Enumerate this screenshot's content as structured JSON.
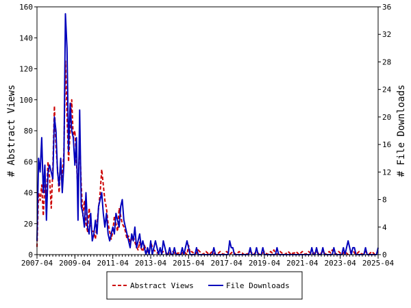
{
  "chart_data": {
    "type": "line",
    "title": "",
    "xlabel": "",
    "ylabel_left": "# Abstract Views",
    "ylabel_right": "# File Downloads",
    "x_start": "2007-04",
    "x_end": "2025-04",
    "x_interval": "monthly",
    "x_tick_labels": [
      "2007-04",
      "2009-04",
      "2011-04",
      "2013-04",
      "2015-04",
      "2017-04",
      "2019-04",
      "2021-04",
      "2023-04",
      "2025-04"
    ],
    "ylim_left": [
      0,
      160
    ],
    "yticks_left": [
      0,
      20,
      40,
      60,
      80,
      100,
      120,
      140,
      160
    ],
    "ylim_right": [
      0,
      36
    ],
    "yticks_right": [
      0,
      4,
      8,
      12,
      16,
      20,
      24,
      28,
      32,
      36
    ],
    "grid": false,
    "legend_position": "bottom",
    "series": [
      {
        "name": "Abstract Views",
        "axis": "left",
        "color": "#cc0000",
        "style": "dashed",
        "values": [
          5,
          40,
          35,
          45,
          25,
          45,
          38,
          60,
          50,
          30,
          55,
          96,
          70,
          55,
          40,
          60,
          50,
          65,
          125,
          90,
          60,
          80,
          100,
          75,
          80,
          60,
          40,
          75,
          45,
          25,
          35,
          20,
          15,
          30,
          20,
          15,
          15,
          10,
          20,
          30,
          40,
          55,
          45,
          35,
          30,
          20,
          15,
          10,
          15,
          25,
          20,
          15,
          30,
          25,
          20,
          18,
          15,
          10,
          12,
          8,
          10,
          12,
          8,
          5,
          3,
          8,
          4,
          2,
          6,
          3,
          2,
          1,
          8,
          5,
          3,
          2,
          1,
          2,
          1,
          1,
          2,
          1,
          1,
          0,
          1,
          0,
          2,
          1,
          0,
          1,
          1,
          0,
          1,
          2,
          1,
          0,
          6,
          1,
          2,
          1,
          0,
          1,
          3,
          2,
          1,
          0,
          1,
          2,
          1,
          0,
          1,
          2,
          1,
          0,
          1,
          1,
          2,
          1,
          0,
          1,
          2,
          1,
          0,
          1,
          2,
          1,
          0,
          1,
          2,
          1,
          1,
          0,
          1,
          0,
          1,
          2,
          1,
          0,
          1,
          2,
          1,
          0,
          1,
          1,
          2,
          1,
          0,
          1,
          2,
          1,
          3,
          1,
          0,
          1,
          2,
          1,
          1,
          0,
          1,
          2,
          1,
          0,
          1,
          1,
          2,
          1,
          0,
          1,
          2,
          1,
          0,
          1,
          2,
          1,
          0,
          1,
          1,
          2,
          1,
          0,
          1,
          2,
          1,
          0,
          1,
          2,
          1,
          3,
          1,
          0,
          1,
          2,
          1,
          0,
          1,
          2,
          1,
          0,
          1,
          2,
          3,
          1,
          0,
          1,
          2,
          1,
          0,
          1,
          2,
          1,
          0,
          1,
          2,
          1,
          0,
          1,
          2
        ]
      },
      {
        "name": "File Downloads",
        "axis": "right",
        "color": "#0000bb",
        "style": "solid",
        "values": [
          2,
          14,
          12,
          17,
          9,
          13,
          5,
          12,
          13,
          12,
          11,
          20,
          18,
          12,
          10,
          14,
          9,
          13,
          35,
          30,
          15,
          22,
          18,
          17,
          13,
          17,
          5,
          21,
          7,
          6,
          4,
          9,
          4,
          3,
          6,
          2,
          3,
          5,
          3,
          7,
          8,
          9,
          6,
          4,
          6,
          3,
          2,
          3,
          4,
          3,
          6,
          5,
          4,
          7,
          8,
          5,
          4,
          3,
          2,
          1,
          3,
          2,
          4,
          1,
          2,
          3,
          1,
          2,
          1,
          0,
          1,
          0,
          2,
          0,
          1,
          2,
          1,
          0,
          1,
          0,
          2,
          1,
          0,
          0,
          1,
          0,
          0,
          1,
          0,
          0,
          0,
          0,
          1,
          0,
          1,
          2,
          1,
          0,
          0,
          0,
          0,
          1,
          0,
          0,
          0,
          0,
          0,
          0,
          0,
          0,
          0,
          0,
          1,
          0,
          0,
          0,
          0,
          0,
          0,
          0,
          0,
          0,
          2,
          1,
          1,
          0,
          0,
          0,
          0,
          0,
          0,
          0,
          0,
          0,
          0,
          1,
          0,
          0,
          0,
          1,
          0,
          0,
          0,
          1,
          0,
          0,
          0,
          0,
          0,
          0,
          0,
          0,
          1,
          0,
          0,
          0,
          0,
          0,
          0,
          0,
          0,
          0,
          0,
          0,
          0,
          0,
          0,
          0,
          0,
          0,
          0,
          0,
          0,
          0,
          1,
          0,
          0,
          1,
          0,
          0,
          0,
          1,
          0,
          0,
          0,
          0,
          0,
          0,
          1,
          0,
          0,
          0,
          0,
          0,
          1,
          0,
          1,
          2,
          1,
          0,
          1,
          1,
          0,
          0,
          0,
          0,
          0,
          0,
          1,
          0,
          0,
          0,
          0,
          0,
          0,
          0,
          1
        ]
      }
    ]
  }
}
